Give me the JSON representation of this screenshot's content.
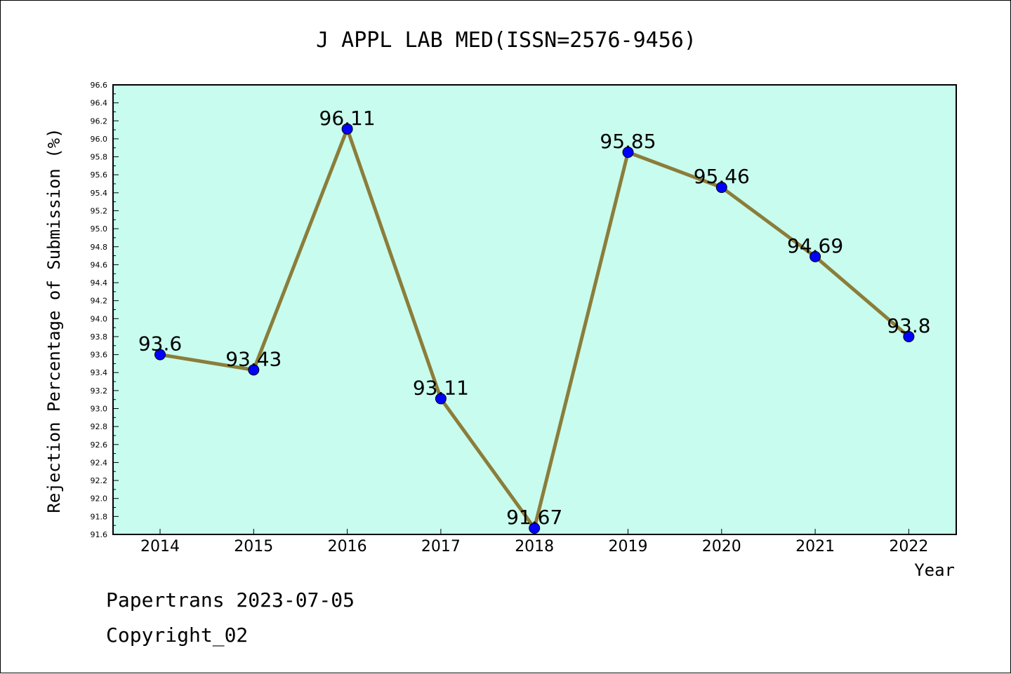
{
  "colors": {
    "plot_background": "#c8fcee",
    "line": "#8b7d3a",
    "marker": "#0000ff",
    "axis": "#000000"
  },
  "footer": {
    "line1": "Papertrans 2023-07-05",
    "line2": "Copyright_02"
  },
  "chart_data": {
    "type": "line",
    "title": "J APPL LAB MED(ISSN=2576-9456)",
    "xlabel": "Year",
    "ylabel": "Rejection Percentage of Submission (%)",
    "categories": [
      "2014",
      "2015",
      "2016",
      "2017",
      "2018",
      "2019",
      "2020",
      "2021",
      "2022"
    ],
    "series": [
      {
        "values": [
          93.6,
          93.43,
          96.11,
          93.11,
          91.67,
          95.85,
          95.46,
          94.69,
          93.8
        ],
        "labels": [
          "93.6",
          "93.43",
          "96.11",
          "93.11",
          "91.67",
          "95.85",
          "95.46",
          "94.69",
          "93.8"
        ]
      }
    ],
    "ylim": [
      91.6,
      96.6
    ],
    "yticks": [
      "91.6",
      "91.8",
      "92.0",
      "92.2",
      "92.4",
      "92.6",
      "92.8",
      "93.0",
      "93.2",
      "93.4",
      "93.6",
      "93.8",
      "94.0",
      "94.2",
      "94.4",
      "94.6",
      "94.8",
      "95.0",
      "95.2",
      "95.4",
      "95.6",
      "95.8",
      "96.0",
      "96.2",
      "96.4",
      "96.6"
    ],
    "grid": false,
    "legend": "none"
  }
}
